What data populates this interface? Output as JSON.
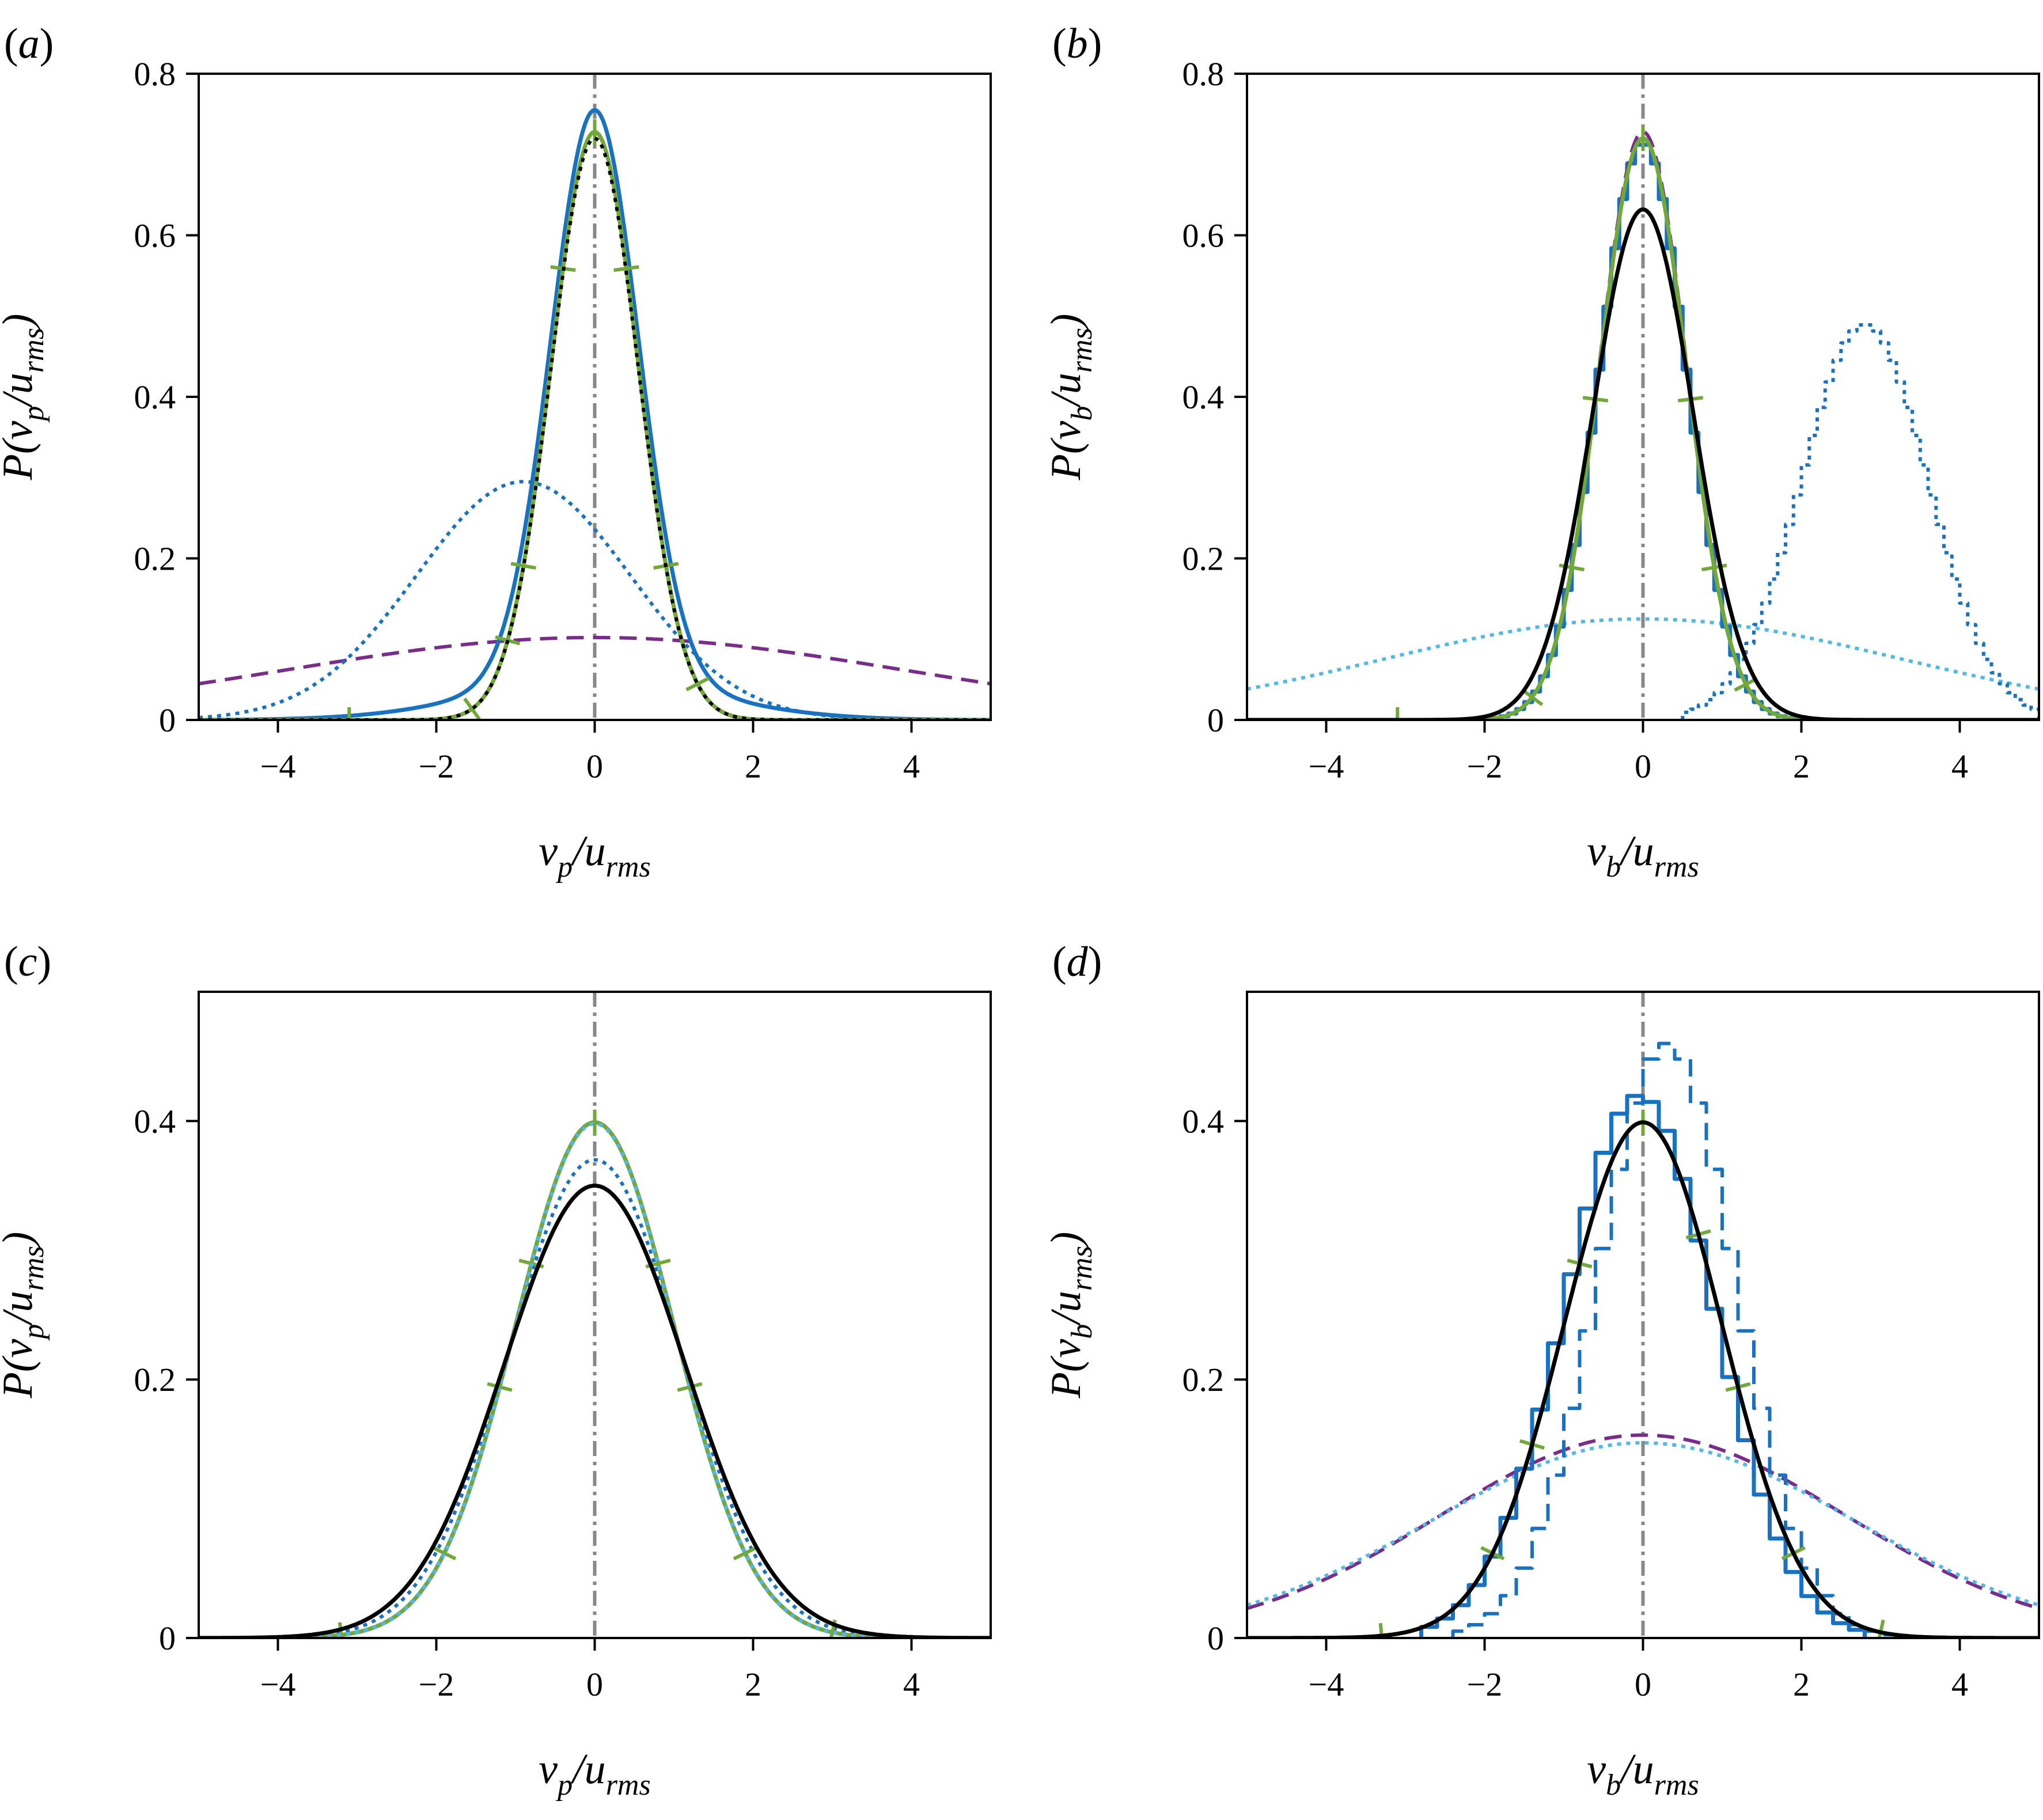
{
  "colors": {
    "black": "#000000",
    "blue": "#1872c1",
    "light_blue": "#52b8e8",
    "green": "#72a83a",
    "purple": "#7a2c8a",
    "gray": "#888888"
  },
  "chart_data": [
    {
      "panel_label": "(a)",
      "panel_letter": "a",
      "type": "line",
      "xlabel": {
        "main": "v",
        "sub": "p",
        "denom": "u",
        "denom_sub": "rms"
      },
      "ylabel": {
        "main": "P(v",
        "sub": "p",
        "mid": "/u",
        "denom_sub": "rms",
        "close": ")"
      },
      "xlim": [
        -5,
        5
      ],
      "ylim": [
        0,
        0.8
      ],
      "xticks": [
        -4,
        -2,
        0,
        2,
        4
      ],
      "xtick_labels": [
        "−4",
        "−2",
        "0",
        "2",
        "4"
      ],
      "yticks": [
        0,
        0.2,
        0.4,
        0.6,
        0.8
      ],
      "ytick_labels": [
        "0",
        "0.2",
        "0.4",
        "0.6",
        "0.8"
      ],
      "reference_line_x": 0,
      "series": [
        {
          "name": "gauss-wide-purple-dashed",
          "kind": "gauss",
          "mu": 0,
          "sigma": 3.9,
          "amp": 0.102,
          "color": "purple",
          "style": "dashed"
        },
        {
          "name": "gauss-skewed-blue-dotted",
          "kind": "gauss",
          "mu": -0.9,
          "sigma": 1.35,
          "amp": 0.295,
          "color": "blue",
          "style": "dotted"
        },
        {
          "name": "blue-solid-tailed",
          "kind": "gauss",
          "mu": 0,
          "sigma": 0.55,
          "amp": 0.705,
          "tail_amp": 0.05,
          "tail_sigma": 1.45,
          "color": "blue",
          "style": "solid"
        },
        {
          "name": "green-marked",
          "kind": "gauss",
          "mu": 0,
          "sigma": 0.55,
          "amp": 0.728,
          "color": "green",
          "style": "solid",
          "markers": [
            -3.1,
            -1.55,
            -1.1,
            -0.9,
            -0.4,
            0,
            0.4,
            0.9,
            1.3
          ]
        },
        {
          "name": "black-dotted",
          "kind": "gauss",
          "mu": 0,
          "sigma": 0.55,
          "amp": 0.72,
          "color": "black",
          "style": "dotted"
        }
      ]
    },
    {
      "panel_label": "(b)",
      "panel_letter": "b",
      "type": "line",
      "xlabel": {
        "main": "v",
        "sub": "b",
        "denom": "u",
        "denom_sub": "rms"
      },
      "ylabel": {
        "main": "P(v",
        "sub": "b",
        "mid": "/u",
        "denom_sub": "rms",
        "close": ")"
      },
      "xlim": [
        -5,
        5
      ],
      "ylim": [
        0,
        0.8
      ],
      "xticks": [
        -4,
        -2,
        0,
        2,
        4
      ],
      "xtick_labels": [
        "−4",
        "−2",
        "0",
        "2",
        "4"
      ],
      "yticks": [
        0,
        0.2,
        0.4,
        0.6,
        0.8
      ],
      "ytick_labels": [
        "0",
        "0.2",
        "0.4",
        "0.6",
        "0.8"
      ],
      "reference_line_x": 0,
      "series": [
        {
          "name": "gauss-wide-lightblue-dotted",
          "kind": "gauss",
          "mu": 0,
          "sigma": 3.25,
          "amp": 0.125,
          "color": "light_blue",
          "style": "dotted"
        },
        {
          "name": "hist-shifted-blue-dotted",
          "kind": "hist",
          "mu": 2.8,
          "sigma": 0.8,
          "amp": 0.49,
          "bin": 0.1,
          "xmin": 0.5,
          "xmax": 5,
          "color": "blue",
          "style": "dotted"
        },
        {
          "name": "hist-blue-solid",
          "kind": "hist",
          "mu": 0,
          "sigma": 0.55,
          "amp": 0.715,
          "bin": 0.1,
          "xmin": -2.2,
          "xmax": 2.2,
          "color": "blue",
          "style": "solid"
        },
        {
          "name": "purple-dashed",
          "kind": "gauss",
          "mu": 0,
          "sigma": 0.55,
          "amp": 0.728,
          "color": "purple",
          "style": "dashed"
        },
        {
          "name": "green-marked",
          "kind": "gauss",
          "mu": 0,
          "sigma": 0.55,
          "amp": 0.72,
          "color": "green",
          "style": "solid",
          "markers": [
            -3.1,
            -1.4,
            -0.9,
            -0.6,
            0,
            0.6,
            0.9,
            1.3
          ]
        },
        {
          "name": "black-solid",
          "kind": "gauss",
          "mu": 0,
          "sigma": 0.63,
          "amp": 0.632,
          "color": "black",
          "style": "solid"
        }
      ]
    },
    {
      "panel_label": "(c)",
      "panel_letter": "c",
      "type": "line",
      "xlabel": {
        "main": "v",
        "sub": "p",
        "denom": "u",
        "denom_sub": "rms"
      },
      "ylabel": {
        "main": "P(v",
        "sub": "p",
        "mid": "/u",
        "denom_sub": "rms",
        "close": ")"
      },
      "xlim": [
        -5,
        5
      ],
      "ylim": [
        0,
        0.5
      ],
      "xticks": [
        -4,
        -2,
        0,
        2,
        4
      ],
      "xtick_labels": [
        "−4",
        "−2",
        "0",
        "2",
        "4"
      ],
      "yticks": [
        0,
        0.2,
        0.4
      ],
      "ytick_labels": [
        "0",
        "0.2",
        "0.4"
      ],
      "reference_line_x": 0,
      "series": [
        {
          "name": "blue-dotted",
          "kind": "gauss",
          "mu": 0,
          "sigma": 1.08,
          "amp": 0.37,
          "color": "blue",
          "style": "dotted"
        },
        {
          "name": "blue-solid",
          "kind": "gauss",
          "mu": 0,
          "sigma": 1.0,
          "amp": 0.399,
          "color": "blue",
          "style": "solid"
        },
        {
          "name": "green-marked",
          "kind": "gauss",
          "mu": 0,
          "sigma": 1.0,
          "amp": 0.399,
          "color": "green",
          "style": "solid",
          "markers": [
            -3.2,
            -1.9,
            -1.2,
            -0.8,
            0,
            0.8,
            1.2,
            1.9,
            3.0
          ]
        },
        {
          "name": "lightblue-dotted",
          "kind": "gauss",
          "mu": 0,
          "sigma": 1.0,
          "amp": 0.398,
          "color": "light_blue",
          "style": "dotted"
        },
        {
          "name": "black-solid",
          "kind": "gauss",
          "mu": 0,
          "sigma": 1.14,
          "amp": 0.35,
          "color": "black",
          "style": "solid"
        }
      ]
    },
    {
      "panel_label": "(d)",
      "panel_letter": "d",
      "type": "line",
      "xlabel": {
        "main": "v",
        "sub": "b",
        "denom": "u",
        "denom_sub": "rms"
      },
      "ylabel": {
        "main": "P(v",
        "sub": "b",
        "mid": "/u",
        "denom_sub": "rms",
        "close": ")"
      },
      "xlim": [
        -5,
        5
      ],
      "ylim": [
        0,
        0.5
      ],
      "xticks": [
        -4,
        -2,
        0,
        2,
        4
      ],
      "xtick_labels": [
        "−4",
        "−2",
        "0",
        "2",
        "4"
      ],
      "yticks": [
        0,
        0.2,
        0.4
      ],
      "ytick_labels": [
        "0",
        "0.2",
        "0.4"
      ],
      "reference_line_x": 0,
      "series": [
        {
          "name": "purple-dashed-wide",
          "kind": "gauss",
          "mu": 0,
          "sigma": 2.55,
          "amp": 0.157,
          "color": "purple",
          "style": "dashed"
        },
        {
          "name": "lightblue-dotted-wide",
          "kind": "gauss",
          "mu": 0,
          "sigma": 2.65,
          "amp": 0.151,
          "color": "light_blue",
          "style": "dotted"
        },
        {
          "name": "hist-blue-dashed",
          "kind": "hist",
          "mu": 0.3,
          "sigma": 0.87,
          "amp": 0.46,
          "bin": 0.2,
          "xmin": -2.4,
          "xmax": 3.2,
          "color": "blue",
          "style": "dashed"
        },
        {
          "name": "hist-blue-solid",
          "kind": "hist",
          "mu": -0.05,
          "sigma": 0.95,
          "amp": 0.42,
          "bin": 0.2,
          "xmin": -2.8,
          "xmax": 2.8,
          "color": "blue",
          "style": "solid"
        },
        {
          "name": "green-marked",
          "kind": "gauss",
          "mu": 0,
          "sigma": 1.0,
          "amp": 0.399,
          "color": "green",
          "style": "solid",
          "markers": [
            -3.3,
            -1.9,
            -1.4,
            -0.8,
            0,
            0.7,
            1.2,
            1.9,
            3.0
          ]
        },
        {
          "name": "black-solid",
          "kind": "gauss",
          "mu": 0,
          "sigma": 1.0,
          "amp": 0.399,
          "color": "black",
          "style": "solid"
        }
      ]
    }
  ]
}
